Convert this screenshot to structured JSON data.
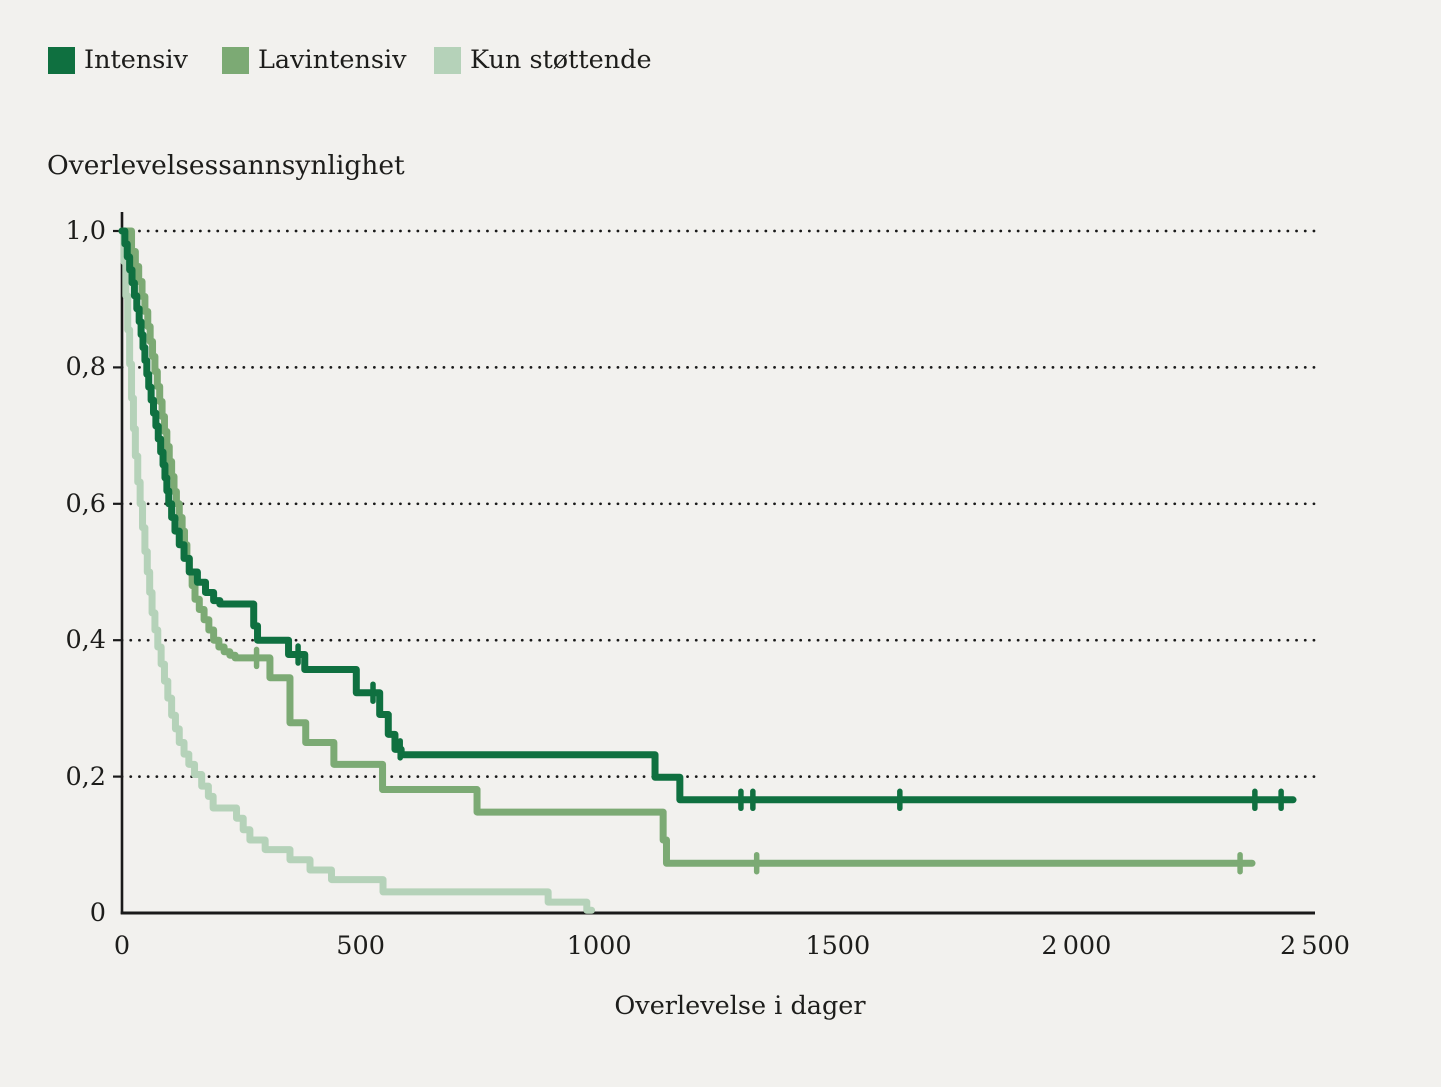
{
  "page": {
    "background_color": "#f2f1ee",
    "text_color": "#1d1d1b",
    "axis_color": "#1a1a1a"
  },
  "chart_data": {
    "type": "line",
    "variant": "kaplan_meier_step",
    "title": "Overlevelsessannsynlighet",
    "xlabel": "Overlevelse i dager",
    "ylabel": "Overlevelsessannsynlighet",
    "xlim": [
      0,
      2500
    ],
    "ylim": [
      0,
      1
    ],
    "grid": {
      "horizontal_dotted": true,
      "vertical": false
    },
    "legend_position": "top-left",
    "x_ticks": [
      {
        "value": 0,
        "label": "0"
      },
      {
        "value": 500,
        "label": "500"
      },
      {
        "value": 1000,
        "label": "1000"
      },
      {
        "value": 1500,
        "label": "1500"
      },
      {
        "value": 2000,
        "label": "2 000"
      },
      {
        "value": 2500,
        "label": "2 500"
      }
    ],
    "y_ticks": [
      {
        "value": 1.0,
        "label": "1,0"
      },
      {
        "value": 0.8,
        "label": "0,8"
      },
      {
        "value": 0.6,
        "label": "0,6"
      },
      {
        "value": 0.4,
        "label": "0,4"
      },
      {
        "value": 0.2,
        "label": "0,2"
      },
      {
        "value": 0,
        "label": "0"
      }
    ],
    "series": [
      {
        "name": "Intensiv",
        "color": "#0f7040",
        "end_day": 2454,
        "censor_days": [
          369,
          526,
          583,
          1297,
          1322,
          1630,
          2374,
          2429
        ],
        "points": [
          [
            0,
            1.0
          ],
          [
            6,
            0.981
          ],
          [
            11,
            0.962
          ],
          [
            16,
            0.943
          ],
          [
            21,
            0.924
          ],
          [
            26,
            0.905
          ],
          [
            31,
            0.886
          ],
          [
            36,
            0.867
          ],
          [
            40,
            0.848
          ],
          [
            44,
            0.829
          ],
          [
            48,
            0.81
          ],
          [
            52,
            0.79
          ],
          [
            56,
            0.771
          ],
          [
            61,
            0.752
          ],
          [
            66,
            0.733
          ],
          [
            71,
            0.714
          ],
          [
            76,
            0.695
          ],
          [
            81,
            0.676
          ],
          [
            86,
            0.657
          ],
          [
            90,
            0.638
          ],
          [
            94,
            0.619
          ],
          [
            98,
            0.6
          ],
          [
            104,
            0.58
          ],
          [
            111,
            0.56
          ],
          [
            120,
            0.54
          ],
          [
            130,
            0.52
          ],
          [
            141,
            0.5
          ],
          [
            158,
            0.485
          ],
          [
            175,
            0.47
          ],
          [
            192,
            0.458
          ],
          [
            205,
            0.453
          ],
          [
            276,
            0.421
          ],
          [
            284,
            0.4
          ],
          [
            349,
            0.379
          ],
          [
            383,
            0.357
          ],
          [
            491,
            0.323
          ],
          [
            540,
            0.291
          ],
          [
            558,
            0.262
          ],
          [
            572,
            0.24
          ],
          [
            585,
            0.232
          ],
          [
            1117,
            0.199
          ],
          [
            1169,
            0.166
          ]
        ]
      },
      {
        "name": "Lavintensiv",
        "color": "#7caa74",
        "end_day": 2368,
        "censor_days": [
          282,
          1330,
          2343
        ],
        "points": [
          [
            0,
            1.0
          ],
          [
            20,
            0.97
          ],
          [
            28,
            0.948
          ],
          [
            35,
            0.926
          ],
          [
            42,
            0.904
          ],
          [
            48,
            0.882
          ],
          [
            54,
            0.86
          ],
          [
            59,
            0.838
          ],
          [
            64,
            0.816
          ],
          [
            69,
            0.794
          ],
          [
            74,
            0.772
          ],
          [
            79,
            0.75
          ],
          [
            84,
            0.728
          ],
          [
            89,
            0.706
          ],
          [
            94,
            0.684
          ],
          [
            99,
            0.662
          ],
          [
            104,
            0.64
          ],
          [
            109,
            0.618
          ],
          [
            114,
            0.6
          ],
          [
            120,
            0.58
          ],
          [
            126,
            0.56
          ],
          [
            131,
            0.54
          ],
          [
            136,
            0.52
          ],
          [
            141,
            0.5
          ],
          [
            147,
            0.48
          ],
          [
            153,
            0.46
          ],
          [
            162,
            0.445
          ],
          [
            172,
            0.43
          ],
          [
            182,
            0.415
          ],
          [
            192,
            0.4
          ],
          [
            203,
            0.39
          ],
          [
            214,
            0.383
          ],
          [
            226,
            0.378
          ],
          [
            237,
            0.374
          ],
          [
            310,
            0.345
          ],
          [
            352,
            0.279
          ],
          [
            385,
            0.25
          ],
          [
            444,
            0.218
          ],
          [
            546,
            0.181
          ],
          [
            744,
            0.148
          ],
          [
            1134,
            0.107
          ],
          [
            1141,
            0.073
          ]
        ]
      },
      {
        "name": "Kun støttende",
        "color": "#b5d2b9",
        "end_day": 984,
        "censor_days": [],
        "points": [
          [
            0,
            1.0
          ],
          [
            4,
            0.955
          ],
          [
            8,
            0.905
          ],
          [
            12,
            0.855
          ],
          [
            16,
            0.805
          ],
          [
            20,
            0.755
          ],
          [
            24,
            0.71
          ],
          [
            28,
            0.67
          ],
          [
            33,
            0.632
          ],
          [
            38,
            0.6
          ],
          [
            43,
            0.565
          ],
          [
            48,
            0.53
          ],
          [
            53,
            0.5
          ],
          [
            58,
            0.47
          ],
          [
            63,
            0.44
          ],
          [
            69,
            0.415
          ],
          [
            75,
            0.39
          ],
          [
            82,
            0.365
          ],
          [
            89,
            0.34
          ],
          [
            96,
            0.315
          ],
          [
            104,
            0.29
          ],
          [
            112,
            0.27
          ],
          [
            120,
            0.25
          ],
          [
            130,
            0.233
          ],
          [
            140,
            0.218
          ],
          [
            152,
            0.203
          ],
          [
            167,
            0.186
          ],
          [
            181,
            0.171
          ],
          [
            191,
            0.154
          ],
          [
            240,
            0.139
          ],
          [
            254,
            0.122
          ],
          [
            268,
            0.107
          ],
          [
            300,
            0.093
          ],
          [
            352,
            0.078
          ],
          [
            394,
            0.063
          ],
          [
            439,
            0.049
          ],
          [
            547,
            0.031
          ],
          [
            893,
            0.016
          ],
          [
            974,
            0.004
          ]
        ]
      }
    ]
  }
}
